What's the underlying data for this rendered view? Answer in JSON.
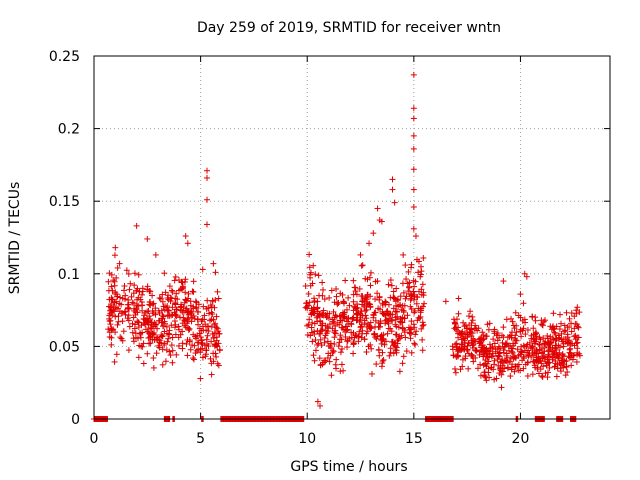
{
  "chart_data": {
    "type": "scatter",
    "title": "Day 259 of 2019, SRMTID for receiver wntn",
    "xlabel": "GPS time / hours",
    "ylabel": "SRMTID / TECUs",
    "xlim": [
      0,
      24.2
    ],
    "ylim": [
      0,
      0.25
    ],
    "x_ticks": [
      0,
      5,
      10,
      15,
      20
    ],
    "x_tick_labels": [
      "0",
      "5",
      "10",
      "15",
      "20"
    ],
    "y_ticks": [
      0,
      0.05,
      0.1,
      0.15,
      0.2,
      0.25
    ],
    "y_tick_labels": [
      "0",
      "0.05",
      "0.1",
      "0.15",
      "0.2",
      "0.25"
    ],
    "grid": true,
    "marker": "+",
    "color": "#e00000",
    "series": [
      {
        "name": "SRMTID",
        "segments": [
          {
            "x_start": 0.6,
            "x_end": 5.9,
            "seed": 11,
            "base": 0.068,
            "spread": 0.024
          },
          {
            "x_start": 9.9,
            "x_end": 15.5,
            "seed": 23,
            "base": 0.07,
            "spread": 0.026
          },
          {
            "x_start": 16.8,
            "x_end": 22.8,
            "seed": 37,
            "base": 0.05,
            "spread": 0.018
          }
        ],
        "points": [
          [
            1.0,
            0.118
          ],
          [
            1.2,
            0.107
          ],
          [
            2.0,
            0.133
          ],
          [
            2.5,
            0.124
          ],
          [
            2.9,
            0.113
          ],
          [
            4.3,
            0.126
          ],
          [
            4.4,
            0.121
          ],
          [
            5.1,
            0.103
          ],
          [
            5.3,
            0.171
          ],
          [
            5.3,
            0.166
          ],
          [
            5.3,
            0.151
          ],
          [
            5.3,
            0.134
          ],
          [
            5.6,
            0.107
          ],
          [
            5.7,
            0.101
          ],
          [
            10.5,
            0.012
          ],
          [
            10.6,
            0.009
          ],
          [
            10.7,
            0.094
          ],
          [
            12.5,
            0.113
          ],
          [
            12.6,
            0.106
          ],
          [
            12.9,
            0.121
          ],
          [
            13.1,
            0.128
          ],
          [
            13.3,
            0.145
          ],
          [
            13.4,
            0.137
          ],
          [
            13.5,
            0.136
          ],
          [
            14.0,
            0.165
          ],
          [
            14.0,
            0.158
          ],
          [
            14.1,
            0.149
          ],
          [
            14.5,
            0.113
          ],
          [
            14.6,
            0.106
          ],
          [
            14.8,
            0.094
          ],
          [
            15.0,
            0.237
          ],
          [
            15.0,
            0.214
          ],
          [
            15.0,
            0.207
          ],
          [
            15.0,
            0.195
          ],
          [
            15.0,
            0.186
          ],
          [
            15.0,
            0.172
          ],
          [
            15.0,
            0.158
          ],
          [
            15.0,
            0.146
          ],
          [
            15.0,
            0.131
          ],
          [
            15.1,
            0.126
          ],
          [
            15.2,
            0.101
          ],
          [
            15.3,
            0.098
          ],
          [
            16.5,
            0.081
          ],
          [
            17.1,
            0.083
          ],
          [
            19.2,
            0.095
          ],
          [
            20.0,
            0.086
          ],
          [
            20.2,
            0.1
          ],
          [
            20.3,
            0.098
          ],
          [
            21.1,
            0.067
          ],
          [
            21.5,
            0.063
          ],
          [
            22.1,
            0.061
          ],
          [
            22.3,
            0.069
          ]
        ],
        "zero_ranges": [
          [
            0.0,
            0.65
          ],
          [
            3.3,
            3.55
          ],
          [
            3.7,
            3.8
          ],
          [
            5.05,
            5.15
          ],
          [
            5.95,
            9.85
          ],
          [
            15.55,
            16.85
          ],
          [
            19.8,
            19.9
          ],
          [
            20.7,
            21.15
          ],
          [
            21.7,
            22.0
          ],
          [
            22.35,
            22.6
          ]
        ]
      }
    ]
  }
}
